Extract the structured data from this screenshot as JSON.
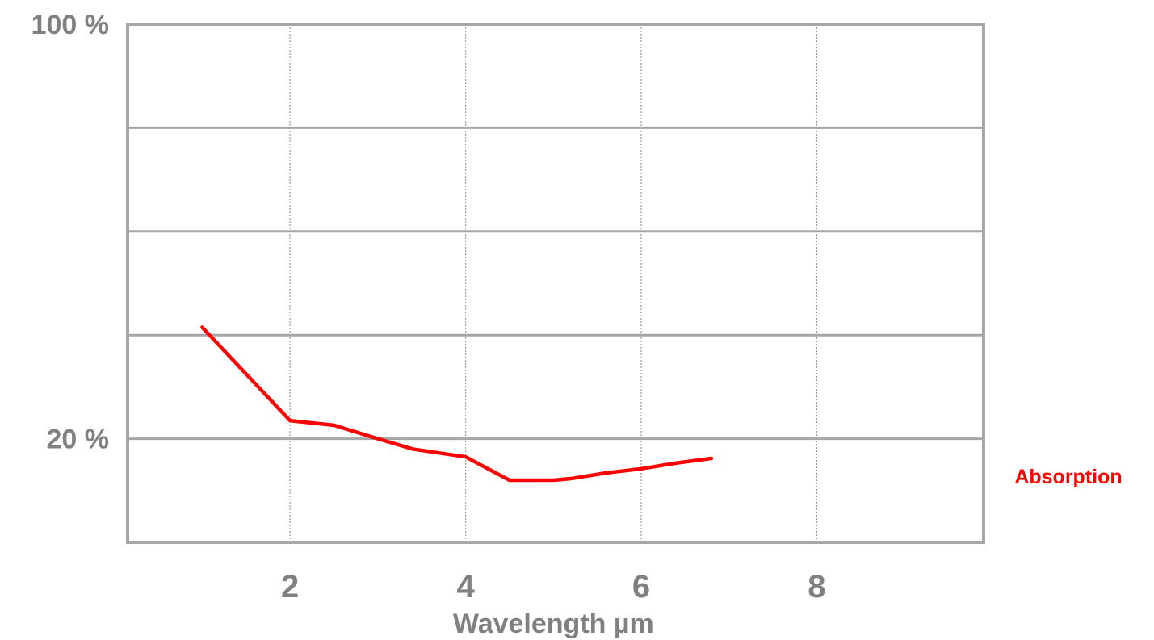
{
  "chart_data": {
    "type": "line",
    "title": "",
    "xlabel": "Wavelength µm",
    "ylabel": "",
    "xlim": [
      0.15,
      9.9
    ],
    "ylim": [
      0,
      100
    ],
    "x_ticks": [
      {
        "value": 2,
        "label": "2"
      },
      {
        "value": 4,
        "label": "4"
      },
      {
        "value": 6,
        "label": "6"
      },
      {
        "value": 8,
        "label": "8"
      }
    ],
    "y_ticks": [
      {
        "value": 100,
        "label": "100 %"
      },
      {
        "value": 20,
        "label": "20 %"
      }
    ],
    "y_gridlines": [
      20,
      40,
      60,
      80
    ],
    "x_gridlines": [
      2,
      4,
      6,
      8
    ],
    "grid": true,
    "series": [
      {
        "name": "Absorption",
        "color": "#ff0000",
        "x": [
          1.0,
          2.0,
          2.5,
          3.0,
          3.4,
          4.0,
          4.5,
          5.0,
          5.2,
          5.6,
          6.0,
          6.4,
          6.8
        ],
        "y": [
          41.5,
          23.5,
          22.6,
          20.0,
          18.0,
          16.5,
          12.0,
          12.0,
          12.3,
          13.4,
          14.2,
          15.3,
          16.2
        ]
      }
    ]
  }
}
